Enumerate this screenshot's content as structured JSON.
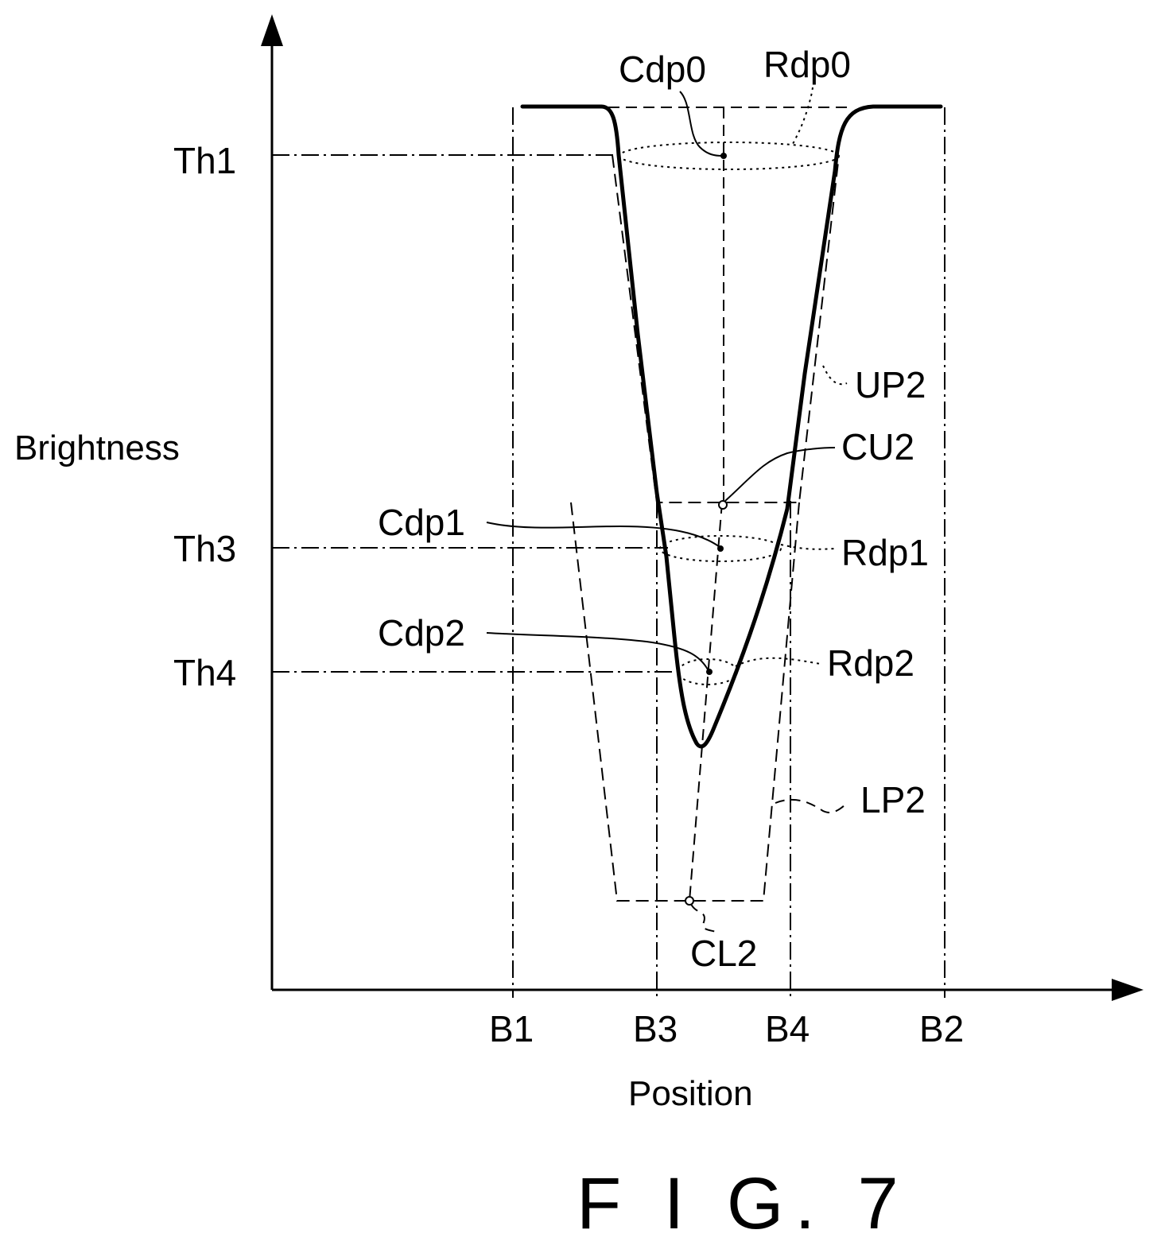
{
  "figure": {
    "caption": "F I G. 7",
    "axes": {
      "y_label": "Brightness",
      "x_label": "Position"
    },
    "y_ticks": [
      "Th1",
      "Th3",
      "Th4"
    ],
    "x_ticks": [
      "B1",
      "B3",
      "B4",
      "B2"
    ],
    "annotations": {
      "cdp0": "Cdp0",
      "rdp0": "Rdp0",
      "up2": "UP2",
      "cu2": "CU2",
      "cdp1": "Cdp1",
      "rdp1": "Rdp1",
      "cdp2": "Cdp2",
      "rdp2": "Rdp2",
      "lp2": "LP2",
      "cl2": "CL2"
    }
  }
}
